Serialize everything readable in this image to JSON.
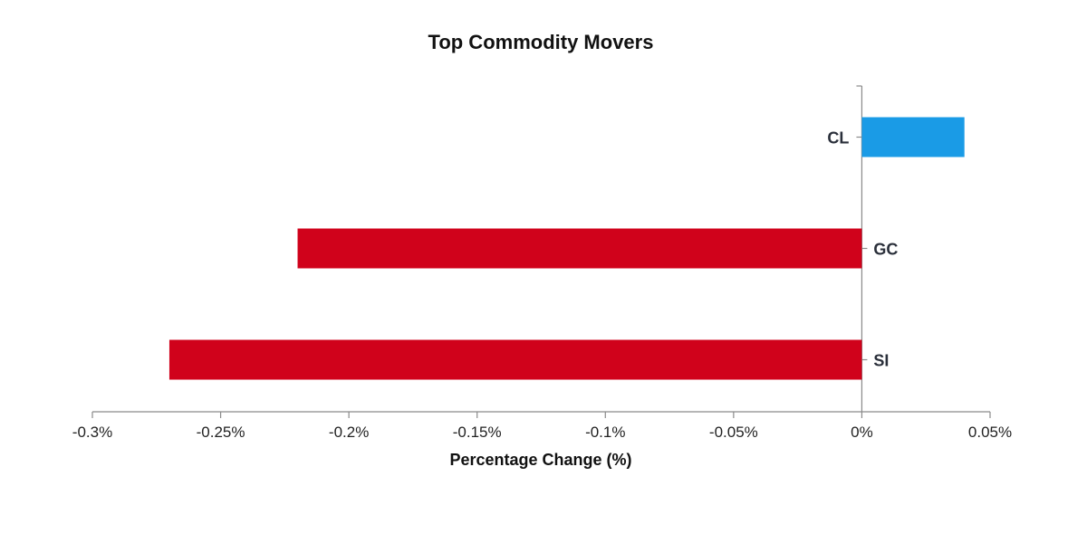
{
  "chart_data": {
    "type": "bar",
    "orientation": "horizontal",
    "title": "Top Commodity Movers",
    "xlabel": "Percentage Change (%)",
    "ylabel": "",
    "categories": [
      "CL",
      "GC",
      "SI"
    ],
    "values": [
      0.04,
      -0.22,
      -0.27
    ],
    "xlim": [
      -0.3,
      0.05
    ],
    "xticks": [
      -0.3,
      -0.25,
      -0.2,
      -0.15,
      -0.1,
      -0.05,
      0,
      0.05
    ],
    "xtick_labels": [
      "-0.3%",
      "-0.25%",
      "-0.2%",
      "-0.15%",
      "-0.1%",
      "-0.05%",
      "0%",
      "0.05%"
    ],
    "grid": false,
    "legend": "none",
    "colors": {
      "positive": "#1a9be6",
      "negative": "#d0021b"
    }
  }
}
